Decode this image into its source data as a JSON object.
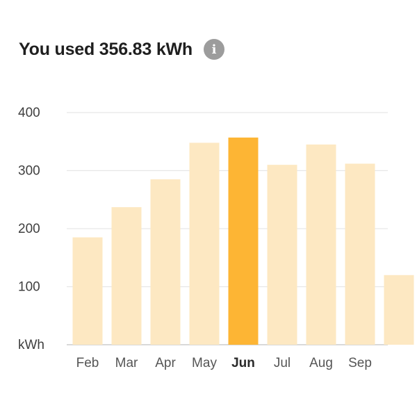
{
  "header": {
    "title": "You used 356.83 kWh",
    "info_icon": "info-icon"
  },
  "colors": {
    "bar": "#fde8c2",
    "bar_active": "#fdb534",
    "grid": "#e6e6e6",
    "baseline": "#d9d9d9"
  },
  "chart_data": {
    "type": "bar",
    "title": "You used 356.83 kWh",
    "xlabel": "",
    "ylabel": "kWh",
    "categories": [
      "Feb",
      "Mar",
      "Apr",
      "May",
      "Jun",
      "Jul",
      "Aug",
      "Sep"
    ],
    "values": [
      185,
      237,
      285,
      348,
      357,
      310,
      345,
      312
    ],
    "selected": "Jun",
    "ylim": [
      0,
      400
    ],
    "yticks": [
      {
        "value": 400,
        "label": "400"
      },
      {
        "value": 300,
        "label": "300"
      },
      {
        "value": 200,
        "label": "200"
      },
      {
        "value": 100,
        "label": "100"
      },
      {
        "value": 0,
        "label": "kWh"
      }
    ],
    "partial_next_bar_value": 120,
    "grid": true
  }
}
